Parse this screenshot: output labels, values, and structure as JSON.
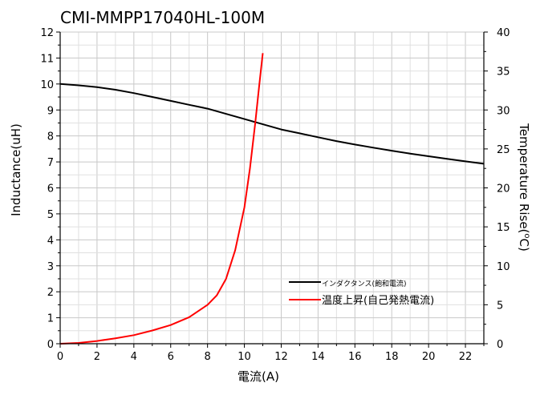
{
  "chart_data": {
    "type": "line",
    "title": "CMI-MMPP17040HL-100M",
    "xlabel": "電流(A)",
    "ylabel_left": "Inductance(uH)",
    "ylabel_right": "Temperature Rise(°C)",
    "ylabel_right_main": "Temperature Rise(",
    "ylabel_right_degree": "o",
    "ylabel_right_unit": "C)",
    "xlim": [
      0,
      23
    ],
    "ylim_left": [
      0,
      12
    ],
    "ylim_right": [
      0,
      40
    ],
    "x_ticks": [
      "0",
      "2",
      "4",
      "6",
      "8",
      "10",
      "12",
      "14",
      "16",
      "18",
      "20",
      "22"
    ],
    "y_left_ticks": [
      "0",
      "1",
      "2",
      "3",
      "4",
      "5",
      "6",
      "7",
      "8",
      "9",
      "10",
      "11",
      "12"
    ],
    "y_right_ticks": [
      "0",
      "5",
      "10",
      "15",
      "20",
      "25",
      "30",
      "35",
      "40"
    ],
    "grid": true,
    "legend_position": "bottom-right",
    "series": [
      {
        "name": "インダクタンス(飽和電流)",
        "axis": "left",
        "color": "#000000",
        "x": [
          0,
          1,
          2,
          3,
          4,
          5,
          6,
          7,
          8,
          9,
          10,
          11,
          12,
          13,
          14,
          15,
          16,
          17,
          18,
          19,
          20,
          21,
          22,
          23
        ],
        "values": [
          10.0,
          9.95,
          9.88,
          9.78,
          9.65,
          9.5,
          9.35,
          9.2,
          9.05,
          8.85,
          8.65,
          8.45,
          8.25,
          8.1,
          7.95,
          7.8,
          7.67,
          7.55,
          7.43,
          7.32,
          7.22,
          7.12,
          7.02,
          6.93
        ]
      },
      {
        "name": "温度上昇(自己発熱電流)",
        "axis": "right",
        "color": "#ff0000",
        "x": [
          0,
          1,
          2,
          3,
          4,
          5,
          6,
          7,
          7.5,
          8,
          8.5,
          9,
          9.5,
          10,
          10.3,
          10.6,
          10.8,
          11.0
        ],
        "values": [
          0,
          0.1,
          0.35,
          0.7,
          1.1,
          1.7,
          2.4,
          3.4,
          4.2,
          5.0,
          6.2,
          8.3,
          12.0,
          17.5,
          22.5,
          28.5,
          33.0,
          37.3
        ]
      }
    ]
  }
}
